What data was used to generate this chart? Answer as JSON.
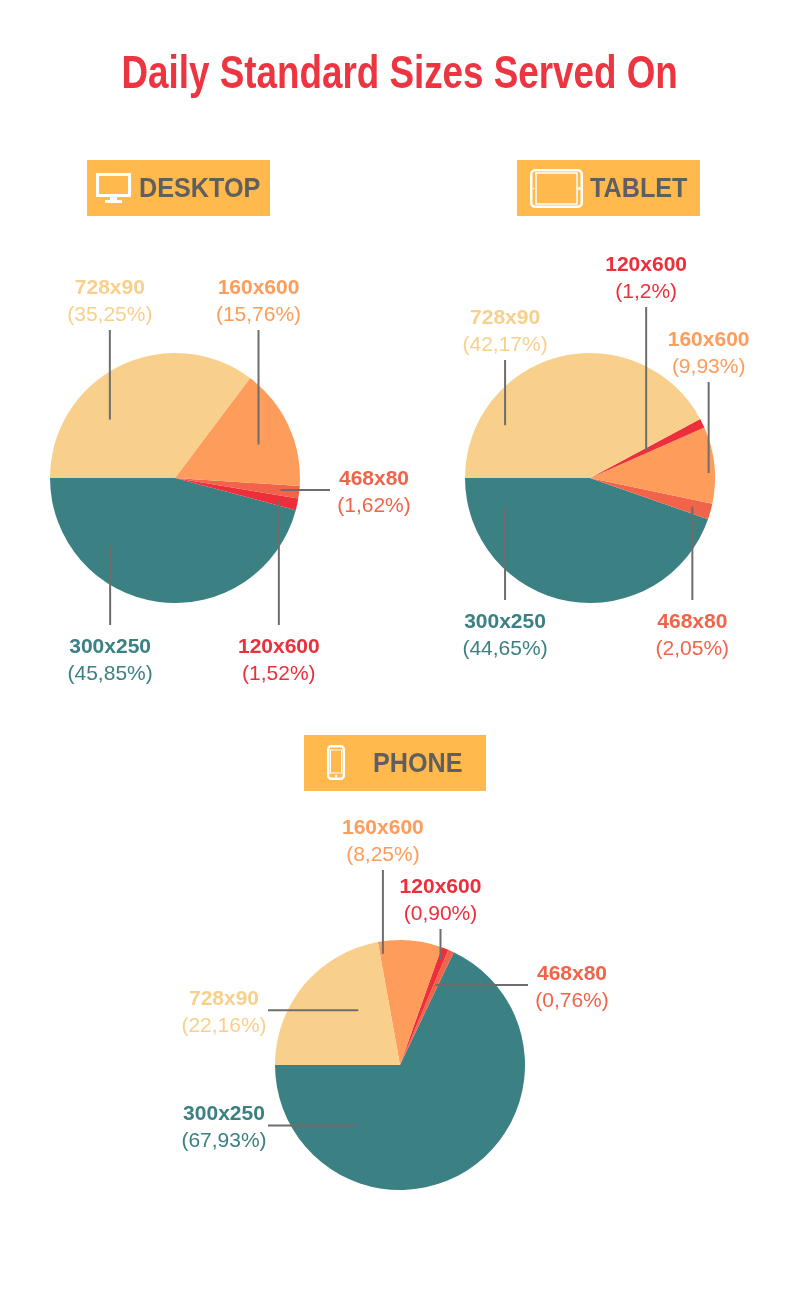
{
  "chart_data": [
    {
      "type": "pie",
      "title": "Daily Standard Sizes Served On",
      "subtitle": "DESKTOP",
      "categories": [
        "300x250",
        "120x600",
        "468x80",
        "160x600",
        "728x90"
      ],
      "values": [
        45.85,
        1.52,
        1.62,
        15.76,
        35.25
      ],
      "colors": [
        "#3b8083",
        "#ec2f3b",
        "#f26449",
        "#fe9c5b",
        "#f9d08b"
      ],
      "value_labels": [
        "(45,85%)",
        "(1,52%)",
        "(1,62%)",
        "(15,76%)",
        "(35,25%)"
      ]
    },
    {
      "type": "pie",
      "subtitle": "TABLET",
      "categories": [
        "300x250",
        "468x80",
        "160x600",
        "120x600",
        "728x90"
      ],
      "values": [
        44.65,
        2.05,
        9.93,
        1.2,
        42.17
      ],
      "colors": [
        "#3b8083",
        "#f26449",
        "#fe9c5b",
        "#ec2f3b",
        "#f9d08b"
      ],
      "value_labels": [
        "(44,65%)",
        "(2,05%)",
        "(9,93%)",
        "(1,2%)",
        "(42,17%)"
      ]
    },
    {
      "type": "pie",
      "subtitle": "PHONE",
      "categories": [
        "300x250",
        "468x80",
        "120x600",
        "160x600",
        "728x90"
      ],
      "values": [
        67.93,
        0.76,
        0.9,
        8.25,
        22.16
      ],
      "colors": [
        "#3b8083",
        "#f26449",
        "#ec2f3b",
        "#fe9c5b",
        "#f9d08b"
      ],
      "value_labels": [
        "(67,93%)",
        "(0,76%)",
        "(0,90%)",
        "(8,25%)",
        "(22,16%)"
      ]
    }
  ]
}
